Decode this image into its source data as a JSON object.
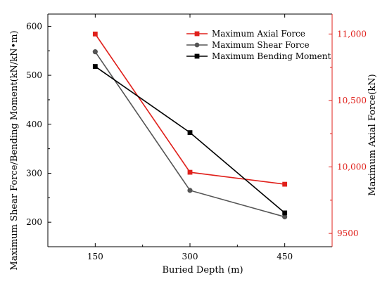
{
  "chart_data": {
    "type": "line",
    "xlabel": "Buried Depth (m)",
    "ylabel_left": "Maximum Shear Force/Bending Moment(kN/kN•m)",
    "ylabel_right": "Maximum Axial Force(kN)",
    "x": [
      150,
      300,
      450
    ],
    "x_ticks": [
      "150",
      "300",
      "450"
    ],
    "xlim": [
      75,
      525
    ],
    "ylim_left": [
      150,
      625
    ],
    "yticks_left": [
      200,
      300,
      400,
      500,
      600
    ],
    "ytick_labels_left": [
      "200",
      "300",
      "400",
      "500",
      "600"
    ],
    "ylim_right": [
      9400,
      11150
    ],
    "yticks_right": [
      9500,
      10000,
      10500,
      11000
    ],
    "ytick_labels_right": [
      "9500",
      "10,000",
      "10,500",
      "11,000"
    ],
    "right_axis_color": "#e0201b",
    "grid": false,
    "legend_position": "top-right",
    "series": [
      {
        "name": "Maximum Axial Force",
        "axis": "right",
        "color": "#e0201b",
        "marker": "square",
        "values": [
          11000,
          9960,
          9870
        ]
      },
      {
        "name": "Maximum Shear Force",
        "axis": "left",
        "color": "#555555",
        "marker": "circle",
        "values": [
          548,
          265,
          211
        ]
      },
      {
        "name": "Maximum Bending Moment",
        "axis": "left",
        "color": "#000000",
        "marker": "square",
        "values": [
          518,
          383,
          219
        ]
      }
    ]
  }
}
